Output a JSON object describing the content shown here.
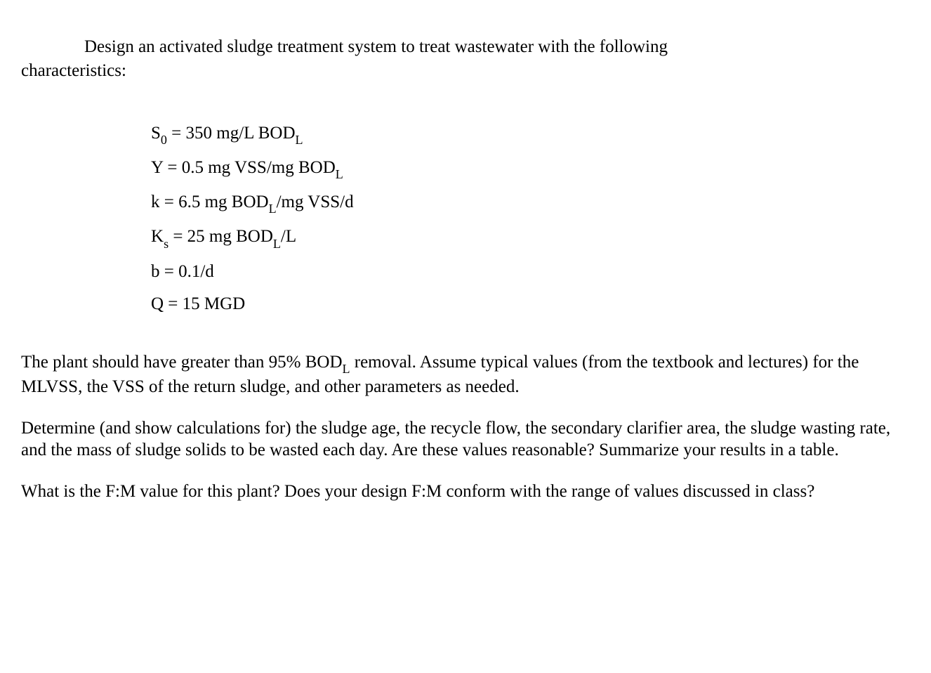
{
  "intro": {
    "line1_pre": "Design an activated sludge treatment system to treat wastewater with the following",
    "line2": "characteristics:"
  },
  "params": {
    "s0_pre": "S",
    "s0_sub": "0",
    "s0_post": " = 350 mg/L BOD",
    "s0_sub2": "L",
    "y_pre": "Y = 0.5 mg VSS/mg BOD",
    "y_sub": "L",
    "k_pre": "k = 6.5 mg BOD",
    "k_sub": "L",
    "k_post": "/mg VSS/d",
    "ks_pre": "K",
    "ks_sub": "s",
    "ks_mid": " = 25 mg BOD",
    "ks_sub2": "L",
    "ks_post": "/L",
    "b": "b = 0.1/d",
    "q": "Q = 15 MGD"
  },
  "para1": {
    "t1": "The plant should have greater than 95% BOD",
    "sub": "L",
    "t2": " removal.  Assume typical values (from the textbook and lectures) for the MLVSS, the VSS of the return sludge, and other parameters as needed."
  },
  "para2": "Determine (and show calculations for) the sludge age, the recycle flow, the secondary clarifier area, the sludge wasting rate, and the mass of sludge solids to be wasted each day.  Are these values reasonable?  Summarize your results in a table.",
  "para3": "What is the F:M value for this plant?  Does your design F:M conform with the range of values discussed in class?"
}
